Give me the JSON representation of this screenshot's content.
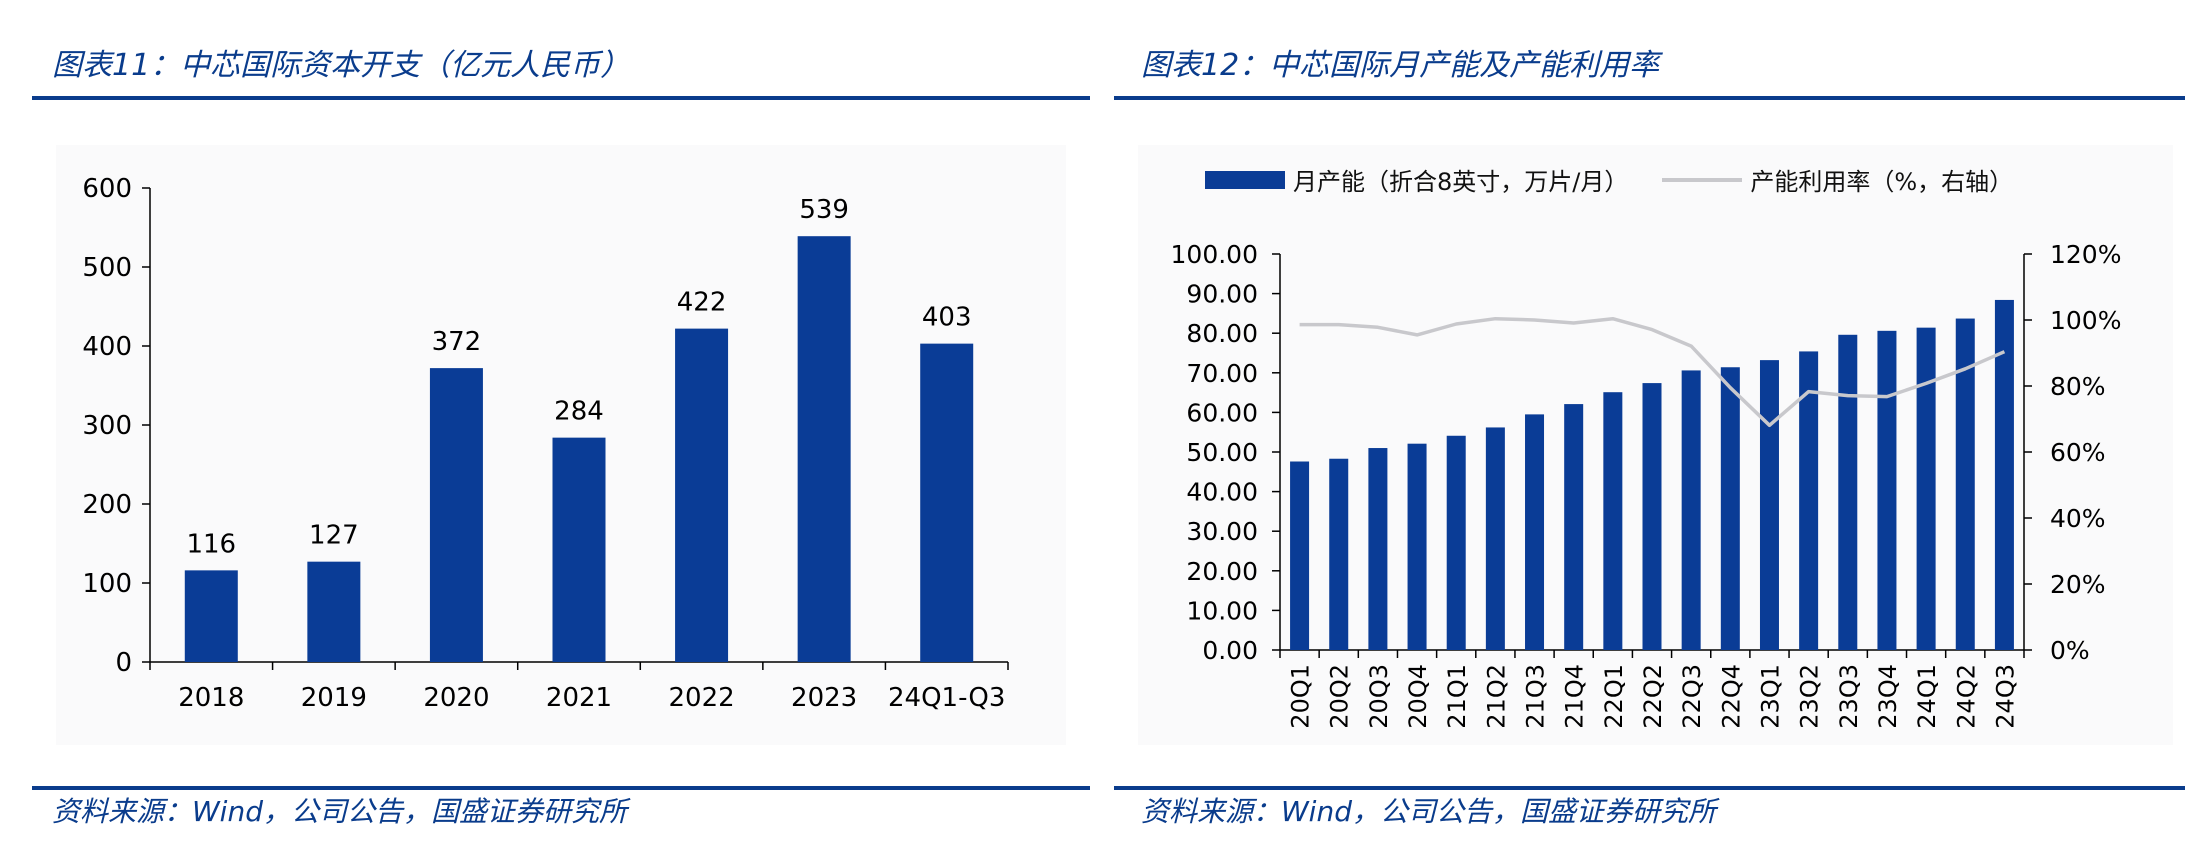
{
  "left": {
    "title": "图表11：中芯国际资本开支（亿元人民币）",
    "source": "资料来源：Wind，公司公告，国盛证券研究所"
  },
  "right": {
    "title": "图表12：中芯国际月产能及产能利用率",
    "source": "资料来源：Wind，公司公告，国盛证券研究所"
  },
  "colors": {
    "accent": "#0a3c8c",
    "bar": "#0a3c96",
    "line": "#c8c8cc"
  },
  "chart_data": [
    {
      "type": "bar",
      "categories": [
        "2018",
        "2019",
        "2020",
        "2021",
        "2022",
        "2023",
        "24Q1-Q3"
      ],
      "values": [
        116,
        127,
        372,
        284,
        422,
        539,
        403
      ],
      "data_labels": [
        "116",
        "127",
        "372",
        "284",
        "422",
        "539",
        "403"
      ],
      "ylim": [
        0,
        600
      ],
      "yticks": [
        "0",
        "100",
        "200",
        "300",
        "400",
        "500",
        "600"
      ],
      "xlabel": "",
      "ylabel": "",
      "grid": false
    },
    {
      "type": "bar",
      "categories": [
        "20Q1",
        "20Q2",
        "20Q3",
        "20Q4",
        "21Q1",
        "21Q2",
        "21Q3",
        "21Q4",
        "22Q1",
        "22Q2",
        "22Q3",
        "22Q4",
        "23Q1",
        "23Q2",
        "23Q3",
        "23Q4",
        "24Q1",
        "24Q2",
        "24Q3"
      ],
      "series": [
        {
          "name": "月产能（折合8英寸，万片/月）",
          "type": "bar",
          "axis": "left",
          "values": [
            47.6,
            48.3,
            51.0,
            52.1,
            54.1,
            56.2,
            59.5,
            62.1,
            65.1,
            67.4,
            70.6,
            71.4,
            73.2,
            75.4,
            79.6,
            80.6,
            81.4,
            83.7,
            88.4
          ]
        },
        {
          "name": "产能利用率（%，右轴）",
          "type": "line",
          "axis": "right",
          "values": [
            98.6,
            98.6,
            97.8,
            95.5,
            98.8,
            100.4,
            100.0,
            99.1,
            100.4,
            97.1,
            92.1,
            79.5,
            68.1,
            78.3,
            77.1,
            76.8,
            80.8,
            85.2,
            90.4
          ]
        }
      ],
      "ylim_left": [
        0,
        100
      ],
      "ylim_right": [
        0,
        120
      ],
      "yticks_left": [
        "0.00",
        "10.00",
        "20.00",
        "30.00",
        "40.00",
        "50.00",
        "60.00",
        "70.00",
        "80.00",
        "90.00",
        "100.00"
      ],
      "yticks_right": [
        "0%",
        "20%",
        "40%",
        "60%",
        "80%",
        "100%",
        "120%"
      ],
      "legend_position": "top",
      "grid": false
    }
  ]
}
